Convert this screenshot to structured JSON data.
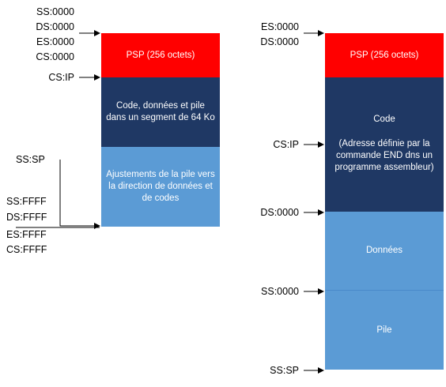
{
  "left": {
    "labels_top": [
      "SS:0000",
      "DS:0000",
      "ES:0000",
      "CS:0000"
    ],
    "label_csip": "CS:IP",
    "label_sssp": "SS:SP",
    "labels_bottom": [
      "SS:FFFF",
      "DS:FFFF",
      "ES:FFFF",
      "CS:FFFF"
    ],
    "blocks": {
      "psp": "PSP (256 octets)",
      "code": "Code, données et pile dans un segment de 64 Ko",
      "stack_adjust": "Ajustements de la pile vers la direction de données et de codes"
    }
  },
  "right": {
    "labels_top": [
      "ES:0000",
      "DS:0000"
    ],
    "label_csip": "CS:IP",
    "label_ds": "DS:0000",
    "label_ss": "SS:0000",
    "label_sssp": "SS:SP",
    "blocks": {
      "psp": "PSP (256 octets)",
      "code_title": "Code",
      "code_note": "(Adresse définie par la commande END dns un programme assembleur)",
      "data": "Données",
      "stack": "Pile"
    }
  },
  "colors": {
    "psp": "#ff0000",
    "code": "#1f3864",
    "data": "#5b9bd5"
  }
}
